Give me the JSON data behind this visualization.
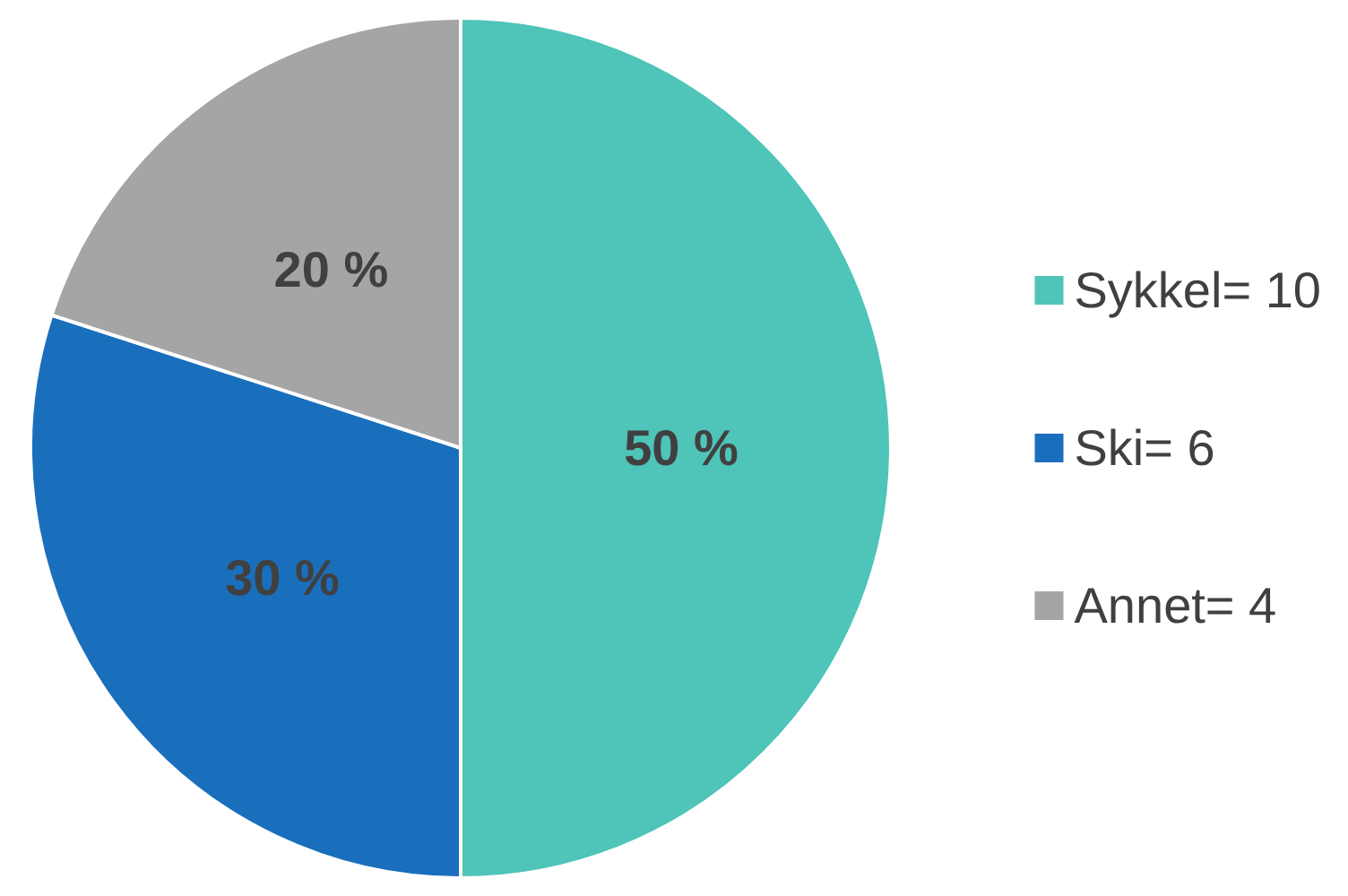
{
  "chart_data": {
    "type": "pie",
    "categories": [
      "Sykkel= 10",
      "Ski= 6",
      "Annet= 4"
    ],
    "values": [
      50,
      30,
      20
    ],
    "value_labels": [
      "50 %",
      "30 %",
      "20 %"
    ],
    "colors": [
      "#4fc4b8",
      "#1a6fbd",
      "#a5a5a5"
    ],
    "legend": "right"
  }
}
